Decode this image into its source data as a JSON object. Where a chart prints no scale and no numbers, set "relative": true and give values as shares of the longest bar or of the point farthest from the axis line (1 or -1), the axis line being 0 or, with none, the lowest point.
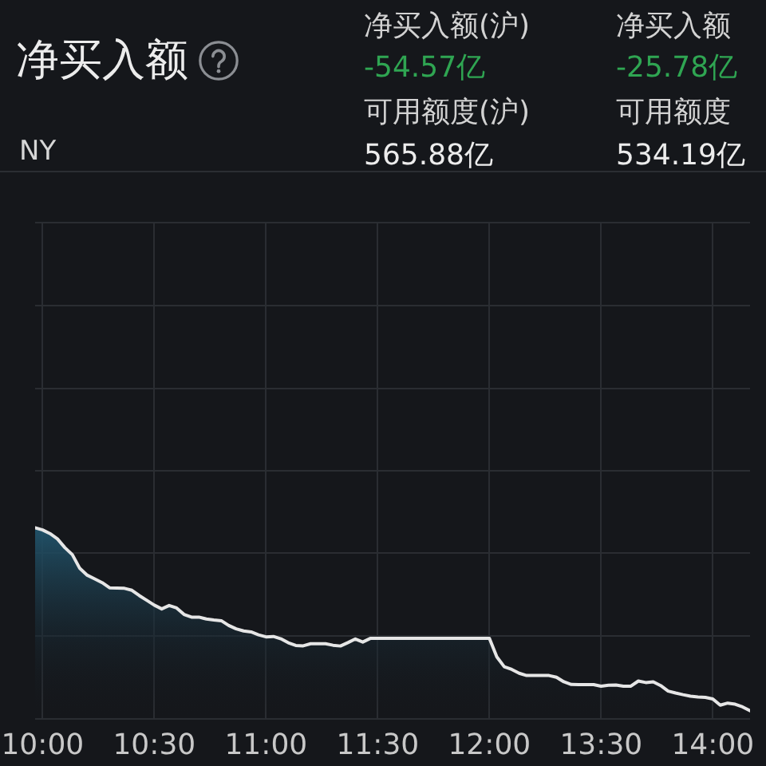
{
  "chart_data": {
    "type": "area",
    "title": "净买入额",
    "subtitle": "NY",
    "annotations": [
      "净买入额(沪)",
      "-54.57亿",
      "可用额度(沪)",
      "565.88亿",
      "净买入额",
      "-25.78亿",
      "可用额度",
      "534.19亿"
    ],
    "categories": [
      null,
      "10:00",
      null,
      null,
      null,
      null,
      null,
      null,
      null,
      null,
      null,
      null,
      null,
      null,
      null,
      null,
      "10:30",
      null,
      null,
      null,
      null,
      null,
      null,
      null,
      null,
      null,
      null,
      null,
      null,
      null,
      null,
      "11:00",
      null,
      null,
      null,
      null,
      null,
      null,
      null,
      null,
      null,
      null,
      null,
      null,
      null,
      null,
      "11:30",
      null,
      null,
      null,
      null,
      null,
      null,
      null,
      null,
      null,
      null,
      null,
      null,
      null,
      null,
      "12:00",
      null,
      null,
      null,
      null,
      null,
      null,
      null,
      null,
      null,
      null,
      null,
      null,
      null,
      null,
      "13:30",
      null,
      null,
      null,
      null,
      null,
      null,
      null,
      null,
      null,
      null,
      null,
      null,
      null,
      null,
      "14:00",
      null,
      null,
      null,
      null,
      null
    ],
    "values": [
      1.0,
      0.989,
      0.97,
      0.942,
      0.896,
      0.859,
      0.787,
      0.751,
      0.732,
      0.712,
      0.685,
      0.684,
      0.682,
      0.672,
      0.644,
      0.619,
      0.594,
      0.574,
      0.592,
      0.579,
      0.545,
      0.531,
      0.531,
      0.521,
      0.516,
      0.512,
      0.487,
      0.469,
      0.458,
      0.453,
      0.438,
      0.427,
      0.429,
      0.417,
      0.396,
      0.382,
      0.38,
      0.391,
      0.391,
      0.391,
      0.383,
      0.379,
      0.397,
      0.416,
      0.4,
      0.419,
      0.419,
      0.419,
      0.419,
      0.419,
      0.419,
      0.419,
      0.419,
      0.419,
      0.419,
      0.419,
      0.419,
      0.419,
      0.419,
      0.419,
      0.419,
      0.419,
      0.322,
      0.27,
      0.256,
      0.236,
      0.224,
      0.224,
      0.224,
      0.224,
      0.215,
      0.191,
      0.177,
      0.176,
      0.176,
      0.176,
      0.168,
      0.173,
      0.174,
      0.168,
      0.168,
      0.195,
      0.187,
      0.191,
      0.171,
      0.142,
      0.132,
      0.123,
      0.115,
      0.111,
      0.109,
      0.101,
      0.068,
      0.079,
      0.073,
      0.059,
      0.039
    ],
    "color": "#e6e6e6",
    "relative": true,
    "grid": true
  }
}
